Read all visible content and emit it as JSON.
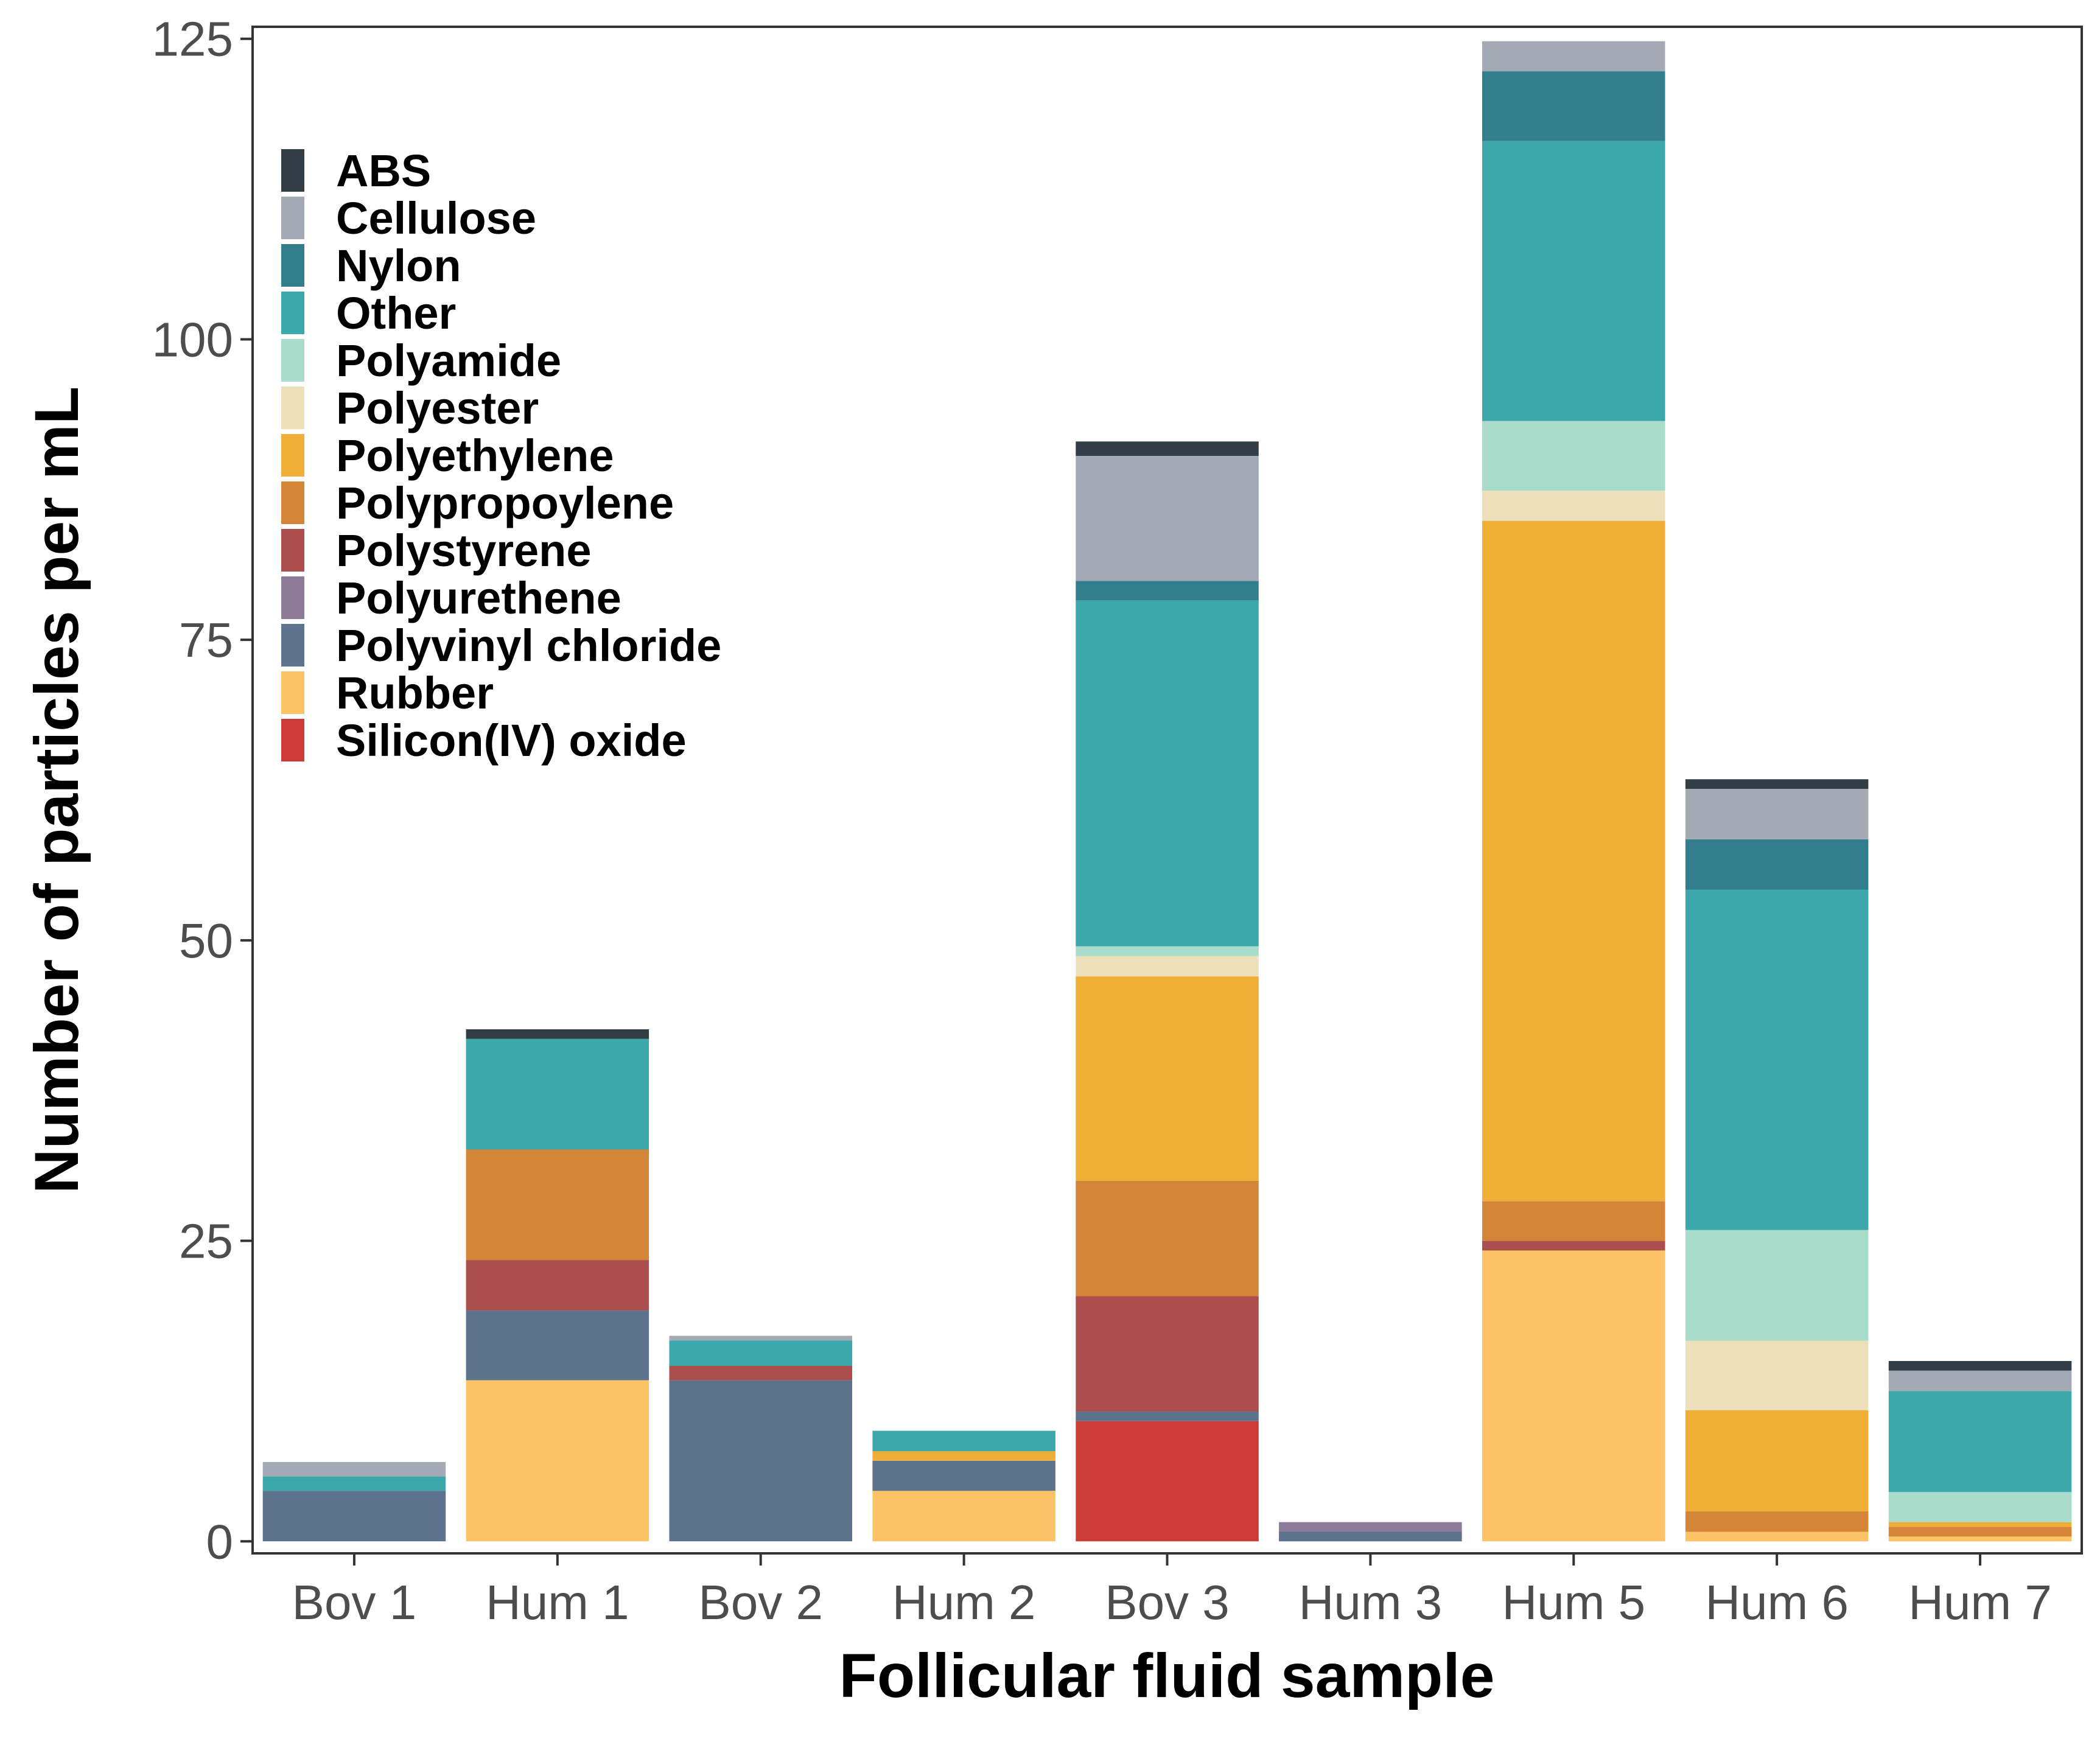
{
  "chart_data": {
    "type": "bar",
    "stacked": true,
    "xlabel": "Follicular fluid sample",
    "ylabel": "Number of particles per mL",
    "ylim": [
      -1,
      126
    ],
    "yticks": [
      0,
      25,
      50,
      75,
      100,
      125
    ],
    "grid": false,
    "legend_position": "top-left",
    "categories": [
      "Bov 1",
      "Hum 1",
      "Bov 2",
      "Hum 2",
      "Bov 3",
      "Hum 3",
      "Hum 5",
      "Hum 6",
      "Hum 7"
    ],
    "series": [
      {
        "name": "Silicon(IV) oxide",
        "color": "#cc3b37",
        "values": [
          0,
          0,
          0,
          0,
          10,
          0,
          0,
          0,
          0
        ]
      },
      {
        "name": "Rubber",
        "color": "#fbc266",
        "values": [
          0,
          13.4,
          0,
          4.2,
          0,
          0,
          24.2,
          0.8,
          0.4
        ]
      },
      {
        "name": "Polyvinyl chloride",
        "color": "#5c728d",
        "values": [
          4.2,
          5.8,
          13.4,
          2.5,
          0.8,
          0.8,
          0,
          0,
          0
        ]
      },
      {
        "name": "Polyurethene",
        "color": "#8c7a99",
        "values": [
          0,
          0,
          0,
          0,
          0,
          0.8,
          0,
          0,
          0
        ]
      },
      {
        "name": "Polystyrene",
        "color": "#ad4e4e",
        "values": [
          0,
          4.2,
          1.2,
          0,
          9.6,
          0,
          0.8,
          0,
          0
        ]
      },
      {
        "name": "Polypropoylene",
        "color": "#d58537",
        "values": [
          0,
          9.2,
          0,
          0,
          9.6,
          0,
          3.3,
          1.7,
          0.8
        ]
      },
      {
        "name": "Polyethylene",
        "color": "#efae36",
        "values": [
          0,
          0,
          0,
          0.8,
          17,
          0,
          56.6,
          8.4,
          0.4
        ]
      },
      {
        "name": "Polyester",
        "color": "#ece0ba",
        "values": [
          0,
          0,
          0,
          0,
          1.7,
          0,
          2.5,
          5.8,
          0
        ]
      },
      {
        "name": "Polyamide",
        "color": "#a9dcca",
        "values": [
          0,
          0,
          0,
          0,
          0.8,
          0,
          5.8,
          9.2,
          2.5
        ]
      },
      {
        "name": "Other",
        "color": "#3ca8ab",
        "values": [
          1.2,
          9.2,
          2.1,
          1.7,
          28.8,
          0,
          23.3,
          28.3,
          8.4
        ]
      },
      {
        "name": "Nylon",
        "color": "#337e8d",
        "values": [
          0,
          0,
          0,
          0,
          1.6,
          0,
          5.8,
          4.2,
          0
        ]
      },
      {
        "name": "Cellulose",
        "color": "#a4aab3",
        "values": [
          1.2,
          0,
          0.4,
          0,
          10.4,
          0,
          2.5,
          4.2,
          1.7
        ]
      },
      {
        "name": "ABS",
        "color": "#313e46",
        "values": [
          0,
          0.8,
          0,
          0,
          1.2,
          0,
          0,
          0.8,
          0.8
        ]
      }
    ]
  }
}
